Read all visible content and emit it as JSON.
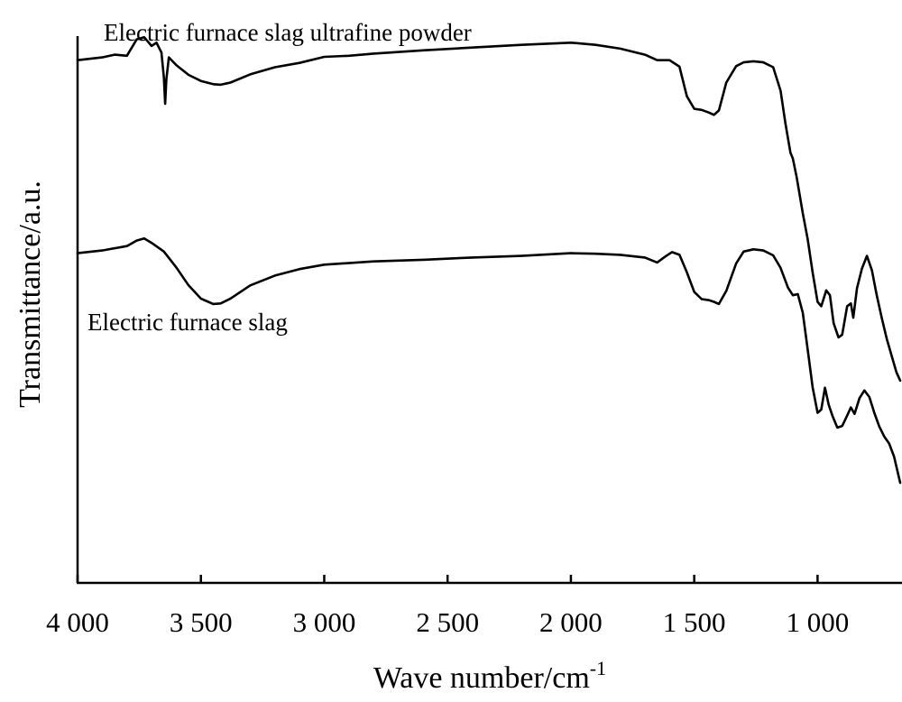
{
  "chart_data": {
    "type": "line",
    "title": "",
    "xlabel": "Wave number/cm",
    "xlabel_superscript": "-1",
    "ylabel": "Transmittance/a.u.",
    "x_reversed": true,
    "xlim": [
      4000,
      665
    ],
    "ylim": [
      0,
      100
    ],
    "grid": false,
    "legend": "none",
    "x_ticks": [
      4000,
      3500,
      3000,
      2500,
      2000,
      1500,
      1000
    ],
    "x_tick_labels": [
      "4 000",
      "3 500",
      "3 000",
      "2 500",
      "2 000",
      "1 500",
      "1 000"
    ],
    "color": "#000000",
    "series": [
      {
        "name": "Electric furnace slag ultrafine powder",
        "x": [
          4000,
          3900,
          3850,
          3800,
          3760,
          3730,
          3700,
          3680,
          3660,
          3650,
          3645,
          3640,
          3630,
          3600,
          3550,
          3500,
          3450,
          3420,
          3380,
          3300,
          3200,
          3100,
          3000,
          2900,
          2800,
          2600,
          2400,
          2200,
          2000,
          1900,
          1800,
          1700,
          1650,
          1600,
          1560,
          1530,
          1500,
          1470,
          1440,
          1420,
          1400,
          1370,
          1330,
          1300,
          1260,
          1220,
          1180,
          1150,
          1130,
          1110,
          1100,
          1085,
          1060,
          1040,
          1020,
          1000,
          985,
          965,
          950,
          935,
          915,
          900,
          880,
          865,
          855,
          840,
          820,
          800,
          780,
          760,
          740,
          720,
          700,
          680,
          665
        ],
        "y": [
          95.6,
          96.1,
          96.6,
          96.4,
          99.4,
          99.8,
          98.2,
          98.8,
          97.0,
          92.4,
          87.6,
          92.0,
          96.1,
          94.7,
          92.9,
          91.8,
          91.2,
          91.1,
          91.5,
          93.0,
          94.3,
          95.1,
          96.2,
          96.4,
          96.8,
          97.4,
          97.9,
          98.4,
          98.8,
          98.4,
          97.7,
          96.6,
          95.6,
          95.6,
          94.4,
          89.0,
          86.7,
          86.5,
          86.0,
          85.6,
          86.4,
          91.5,
          94.5,
          95.2,
          95.4,
          95.2,
          94.3,
          90.0,
          84.0,
          78.7,
          77.6,
          74.3,
          67.6,
          62.8,
          56.8,
          51.4,
          50.6,
          53.5,
          52.6,
          47.5,
          44.9,
          45.4,
          50.6,
          51.1,
          48.5,
          53.9,
          57.5,
          59.8,
          57.2,
          52.6,
          48.5,
          44.7,
          41.6,
          38.5,
          37.0
        ]
      },
      {
        "name": "Electric furnace slag",
        "x": [
          4000,
          3900,
          3800,
          3760,
          3730,
          3700,
          3650,
          3600,
          3550,
          3500,
          3470,
          3450,
          3420,
          3380,
          3300,
          3200,
          3100,
          3000,
          2800,
          2600,
          2400,
          2200,
          2000,
          1900,
          1800,
          1700,
          1650,
          1620,
          1590,
          1560,
          1530,
          1500,
          1470,
          1440,
          1420,
          1400,
          1370,
          1330,
          1300,
          1260,
          1220,
          1180,
          1150,
          1120,
          1100,
          1080,
          1060,
          1040,
          1020,
          1000,
          985,
          970,
          955,
          940,
          920,
          900,
          880,
          865,
          850,
          830,
          810,
          790,
          770,
          750,
          730,
          710,
          690,
          665
        ],
        "y": [
          60.3,
          60.8,
          61.6,
          62.6,
          63.0,
          62.2,
          60.6,
          57.7,
          54.4,
          52.0,
          51.4,
          51.0,
          51.1,
          52.0,
          54.4,
          56.2,
          57.4,
          58.2,
          58.8,
          59.1,
          59.5,
          59.8,
          60.3,
          60.2,
          60.0,
          59.5,
          58.6,
          59.6,
          60.5,
          60.0,
          56.8,
          53.2,
          51.9,
          51.7,
          51.4,
          51.0,
          53.4,
          58.4,
          60.6,
          61.0,
          60.8,
          59.9,
          57.6,
          54.0,
          52.6,
          52.8,
          49.4,
          42.6,
          35.8,
          31.1,
          31.7,
          35.7,
          32.6,
          30.6,
          28.4,
          28.7,
          30.6,
          32.1,
          30.9,
          33.8,
          35.2,
          34.0,
          31.1,
          28.6,
          26.8,
          25.5,
          23.1,
          18.3
        ]
      }
    ]
  }
}
